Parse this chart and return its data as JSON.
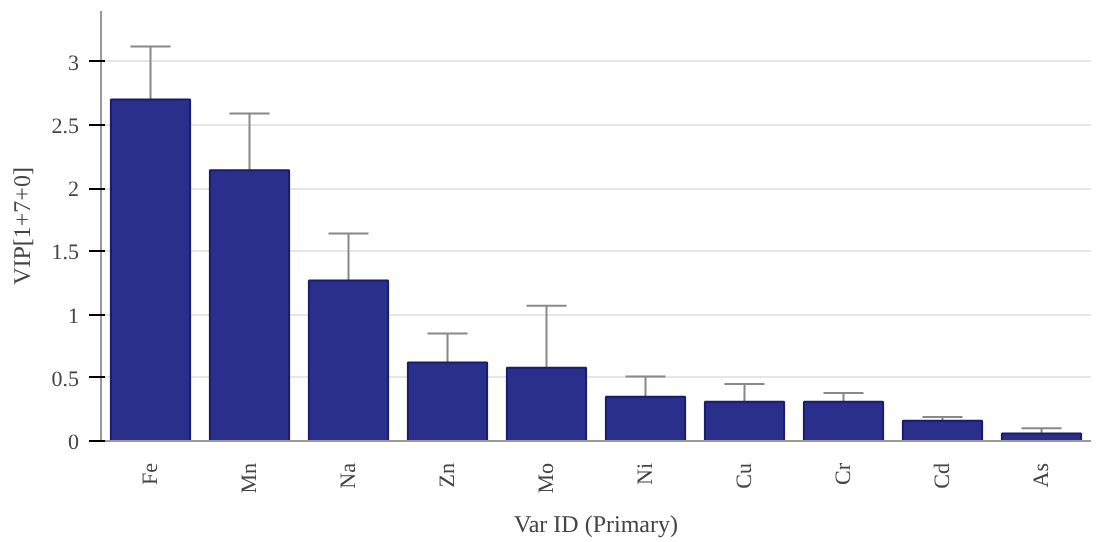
{
  "chart_data": {
    "type": "bar",
    "categories": [
      "Fe",
      "Mn",
      "Na",
      "Zn",
      "Mo",
      "Ni",
      "Cu",
      "Cr",
      "Cd",
      "As"
    ],
    "values": [
      2.7,
      2.14,
      1.27,
      0.62,
      0.58,
      0.35,
      0.31,
      0.31,
      0.16,
      0.06
    ],
    "errors": [
      [
        2.7,
        3.12
      ],
      [
        2.14,
        2.59
      ],
      [
        1.27,
        1.64
      ],
      [
        0.62,
        0.85
      ],
      [
        0.58,
        1.07
      ],
      [
        0.35,
        0.51
      ],
      [
        0.31,
        0.45
      ],
      [
        0.31,
        0.38
      ],
      [
        0.16,
        0.19
      ],
      [
        0.06,
        0.1
      ]
    ],
    "color": "#2b2f8c",
    "xlabel": "Var ID (Primary)",
    "ylabel": "VIP[1+7+0]",
    "ylim": [
      0,
      3.4
    ],
    "yticks": [
      0,
      0.5,
      1,
      1.5,
      2,
      2.5,
      3
    ],
    "grid": "y"
  }
}
